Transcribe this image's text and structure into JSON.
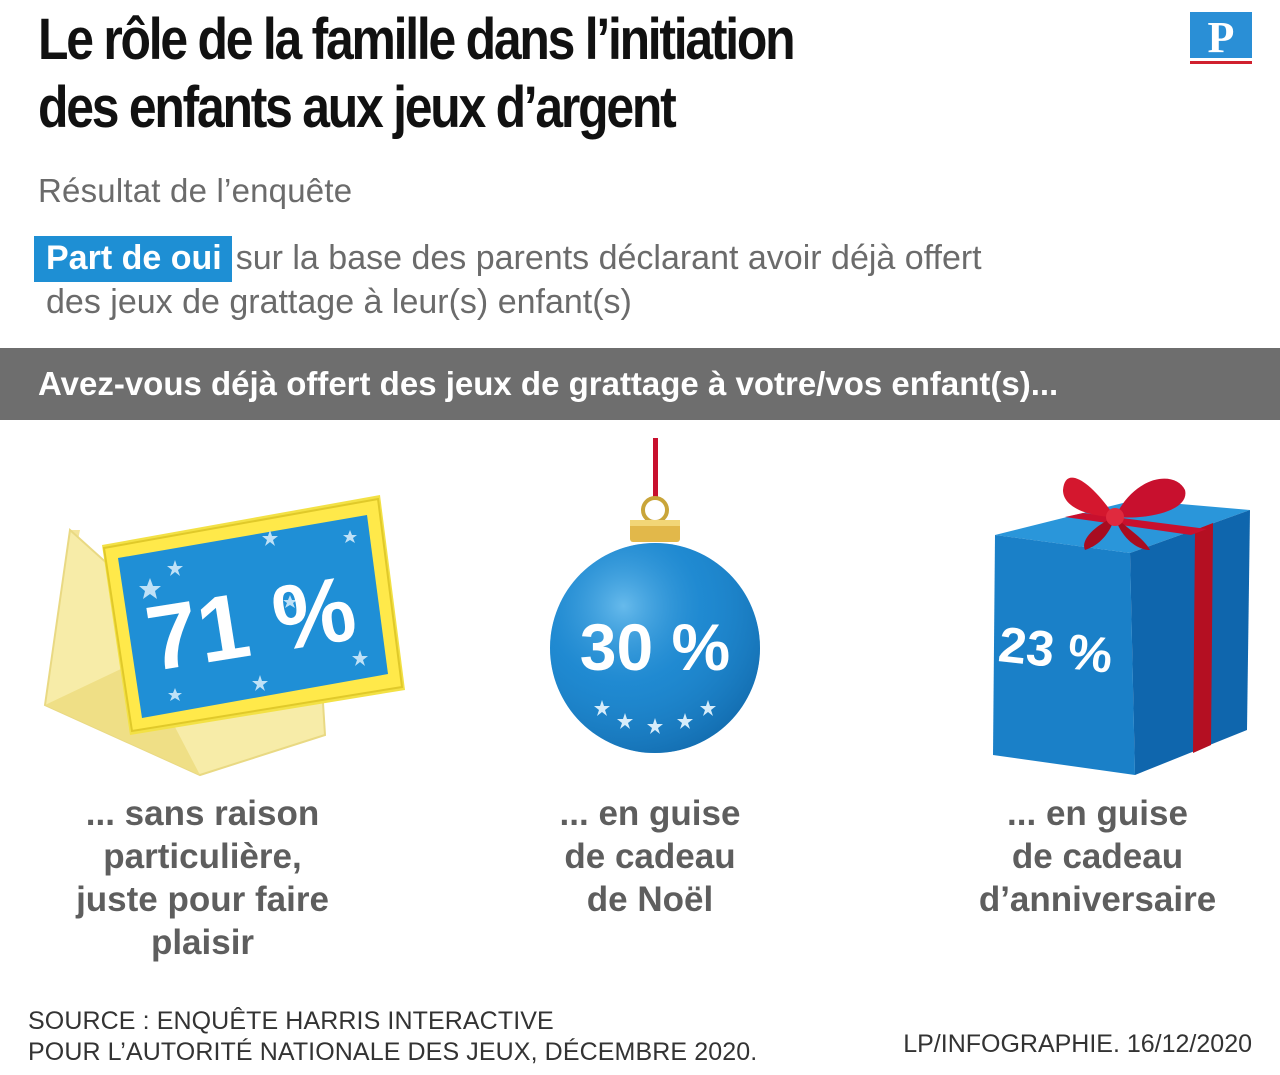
{
  "title": {
    "line1": "Le rôle de la famille dans l’initiation",
    "line2": "des enfants aux jeux d’argent"
  },
  "logo": {
    "letter": "P",
    "icon": "le-parisien-logo"
  },
  "subtitle": "Résultat de l’enquête",
  "explanation": {
    "badge": "Part de oui",
    "line1": "sur la base des parents déclarant avoir déjà offert",
    "line2": "des jeux de grattage à leur(s) enfant(s)"
  },
  "question": "Avez-vous déjà offert des jeux de grattage à votre/vos enfant(s)...",
  "items": [
    {
      "value_label": "71 %",
      "value": 71,
      "icon": "scratch-ticket-envelope-icon",
      "label": [
        "... sans raison",
        "particulière,",
        "juste pour faire",
        "plaisir"
      ]
    },
    {
      "value_label": "30 %",
      "value": 30,
      "icon": "christmas-bauble-icon",
      "label": [
        "... en guise",
        "de cadeau",
        "de Noël"
      ]
    },
    {
      "value_label": "23 %",
      "value": 23,
      "icon": "gift-box-icon",
      "label": [
        "... en guise",
        "de cadeau",
        "d’anniversaire"
      ]
    }
  ],
  "colors": {
    "accent_blue": "#1e8fd4",
    "bar_gray": "#6e6e6e",
    "ribbon_red": "#c8102e",
    "envelope_yellow": "#f6e88a"
  },
  "source": {
    "line1": "SOURCE : ENQUÊTE HARRIS INTERACTIVE",
    "line2": "POUR L’AUTORITÉ NATIONALE DES JEUX, DÉCEMBRE 2020."
  },
  "credit": "LP/INFOGRAPHIE.  16/12/2020"
}
